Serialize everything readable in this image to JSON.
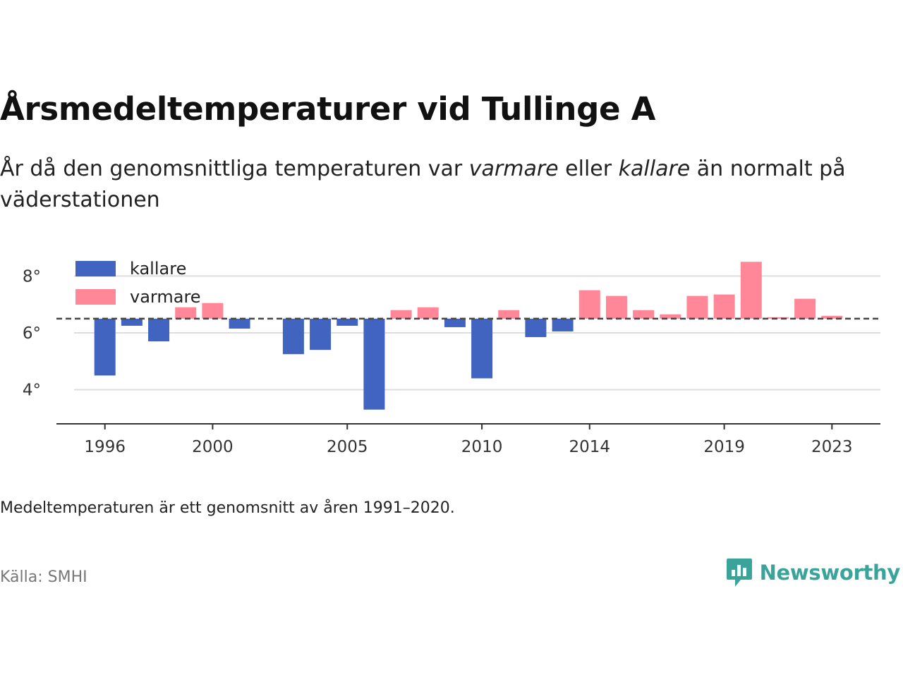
{
  "title": "Årsmedeltemperaturer vid Tullinge A",
  "subtitle": {
    "part1": "År då den genomsnittliga temperaturen var ",
    "warmer": "varmare",
    "part2": " eller ",
    "colder": "kallare",
    "part3": " än normalt på väderstationen"
  },
  "note": "Medeltemperaturen är ett genomsnitt av åren 1991–2020.",
  "source": "Källa: SMHI",
  "brand": {
    "name": "Newsworthy",
    "icon": "newsworthy-logo-icon"
  },
  "colors": {
    "kallare": "#4164c0",
    "varmare": "#ff8797",
    "grid": "#dddddd",
    "reference": "#444444",
    "brand": "#3aa39a"
  },
  "chart_data": {
    "type": "bar",
    "x": [
      1996,
      1997,
      1998,
      1999,
      2000,
      2001,
      2003,
      2004,
      2005,
      2006,
      2007,
      2008,
      2009,
      2010,
      2011,
      2012,
      2013,
      2014,
      2015,
      2016,
      2017,
      2018,
      2019,
      2020,
      2021,
      2022,
      2023
    ],
    "values": [
      4.5,
      6.25,
      5.7,
      6.9,
      7.05,
      6.15,
      5.25,
      5.4,
      6.25,
      3.3,
      6.8,
      6.9,
      6.2,
      4.4,
      6.8,
      5.85,
      6.05,
      7.5,
      7.3,
      6.8,
      6.65,
      7.3,
      7.35,
      8.5,
      6.55,
      7.2,
      6.6
    ],
    "baseline": 6.5,
    "ylim": [
      2.8,
      9.0
    ],
    "yticks": [
      4,
      6,
      8
    ],
    "ytick_labels": [
      "4°",
      "6°",
      "8°"
    ],
    "xticks": [
      1996,
      2000,
      2005,
      2010,
      2014,
      2019,
      2023
    ],
    "xtick_labels": [
      "1996",
      "2000",
      "2005",
      "2010",
      "2014",
      "2019",
      "2023"
    ],
    "legend": [
      "kallare",
      "varmare"
    ],
    "legend_position": "top-left",
    "grid": true,
    "xlabel": "",
    "ylabel": ""
  }
}
